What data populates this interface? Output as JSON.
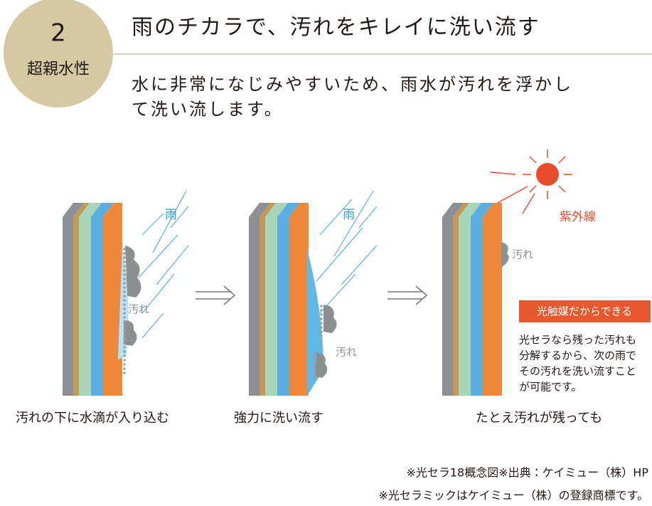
{
  "badge": {
    "number": "2",
    "label": "超親水性"
  },
  "title": "雨のチカラで、汚れをキレイに洗い流す",
  "description": [
    "水に非常になじみやすいため、雨水が汚れを浮かし",
    "て洗い流します。"
  ],
  "panels": [
    {
      "rain": "雨",
      "dirt": "汚れ",
      "caption": "汚れの下に水滴が入り込む"
    },
    {
      "rain": "雨",
      "dirt": "汚れ",
      "caption": "強力に洗い流す"
    },
    {
      "uv": "紫外線",
      "dirt": "汚れ",
      "box": "光触媒だからできる",
      "note": [
        "光セラなら残った汚れも",
        "分解するから、次の雨で",
        "その汚れを洗い流すこと",
        "が可能です。"
      ],
      "caption": "たとえ汚れが残っても"
    }
  ],
  "footnotes": [
    "※光セラ18概念図※出典：ケイミュー（株）HP",
    "※光セラミックはケイミュー（株）の登録商標です。"
  ]
}
